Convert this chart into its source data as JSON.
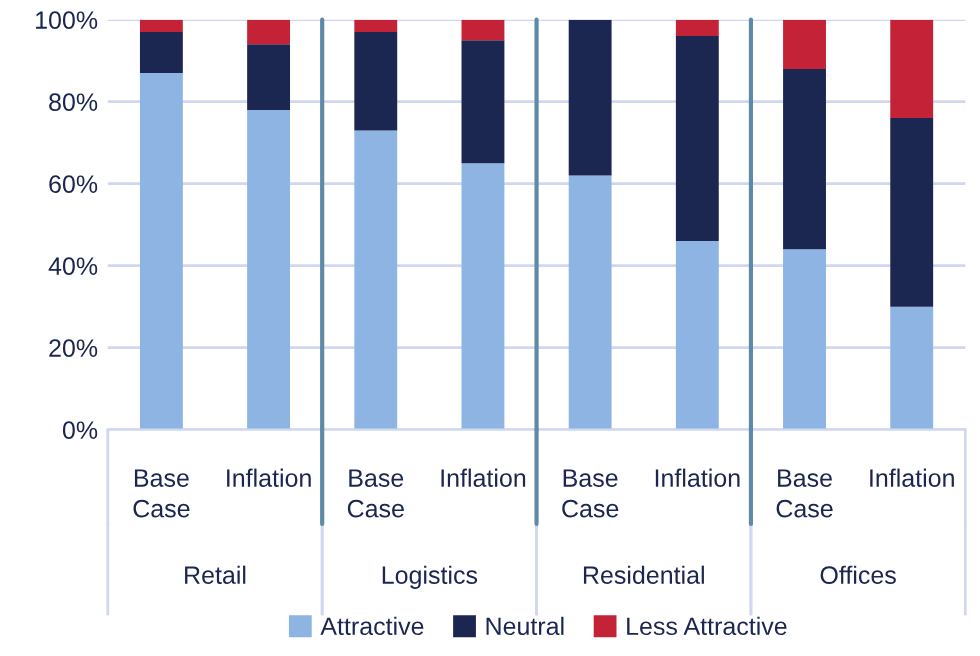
{
  "chart_data": {
    "type": "bar",
    "stacked": true,
    "categories": [
      "Base Case",
      "Inflation",
      "Base Case",
      "Inflation",
      "Base Case",
      "Inflation",
      "Base Case",
      "Inflation"
    ],
    "series": [
      {
        "name": "Attractive",
        "color": "#8db4e2",
        "values": [
          87,
          78,
          73,
          65,
          62,
          46,
          44,
          30
        ]
      },
      {
        "name": "Neutral",
        "color": "#1b2651",
        "values": [
          10,
          16,
          24,
          30,
          38,
          50,
          44,
          46
        ]
      },
      {
        "name": "Less Attractive",
        "color": "#c42236",
        "values": [
          3,
          6,
          3,
          5,
          0,
          4,
          12,
          24
        ]
      }
    ],
    "annotations": [
      "Retail",
      "Logistics",
      "Residential",
      "Offices"
    ],
    "ylim": [
      0,
      100
    ],
    "yticks": [
      {
        "value": 0,
        "label": "0%"
      },
      {
        "value": 20,
        "label": "20%"
      },
      {
        "value": 40,
        "label": "40%"
      },
      {
        "value": 60,
        "label": "60%"
      },
      {
        "value": 80,
        "label": "80%"
      },
      {
        "value": 100,
        "label": "100%"
      }
    ],
    "grid": "y",
    "legend": "bottom"
  }
}
